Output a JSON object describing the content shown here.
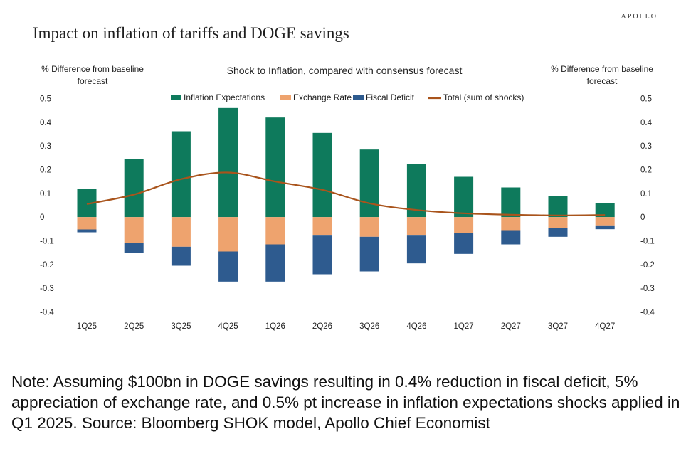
{
  "header": {
    "brand": "APOLLO",
    "title": "Impact on inflation of tariffs and DOGE savings"
  },
  "note": "Note: Assuming $100bn in DOGE savings resulting in 0.4% reduction in fiscal deficit, 5% appreciation of exchange rate, and 0.5% pt increase in inflation expectations shocks applied in Q1 2025. Source: Bloomberg SHOK model, Apollo Chief Economist",
  "colors": {
    "inflation_expectations": "#0e7a5c",
    "exchange_rate": "#eea36e",
    "fiscal_deficit": "#2e5b8f",
    "total": "#a9541c"
  },
  "chart_data": {
    "type": "bar",
    "stacked": true,
    "title": "Shock to Inflation, compared with consensus forecast",
    "ylabel_left": [
      "% Difference from baseline",
      "forecast"
    ],
    "ylabel_right": [
      "% Difference from baseline",
      "forecast"
    ],
    "ylim": [
      -0.4,
      0.5
    ],
    "yticks": [
      0.5,
      0.4,
      0.3,
      0.2,
      0.1,
      0,
      -0.1,
      -0.2,
      -0.3,
      -0.4
    ],
    "ytick_labels": [
      "0.5",
      "0.4",
      "0.3",
      "0.2",
      "0.1",
      "0",
      "-0.1",
      "-0.2",
      "-0.3",
      "-0.4"
    ],
    "categories": [
      "1Q25",
      "2Q25",
      "3Q25",
      "4Q25",
      "1Q26",
      "2Q26",
      "3Q26",
      "4Q26",
      "1Q27",
      "2Q27",
      "3Q27",
      "4Q27"
    ],
    "series": [
      {
        "name": "Inflation Expectations",
        "kind": "bar",
        "color": "#0e7a5c",
        "values": [
          0.12,
          0.245,
          0.362,
          0.46,
          0.42,
          0.355,
          0.285,
          0.223,
          0.17,
          0.125,
          0.09,
          0.06
        ]
      },
      {
        "name": "Exchange Rate",
        "kind": "bar",
        "color": "#eea36e",
        "values": [
          -0.052,
          -0.11,
          -0.125,
          -0.145,
          -0.115,
          -0.078,
          -0.083,
          -0.078,
          -0.068,
          -0.058,
          -0.047,
          -0.035
        ]
      },
      {
        "name": "Fiscal Deficit",
        "kind": "bar",
        "color": "#2e5b8f",
        "values": [
          -0.012,
          -0.04,
          -0.08,
          -0.127,
          -0.157,
          -0.163,
          -0.146,
          -0.117,
          -0.087,
          -0.057,
          -0.036,
          -0.016
        ]
      },
      {
        "name": "Total (sum of shocks)",
        "kind": "line",
        "color": "#a9541c",
        "values": [
          0.055,
          0.095,
          0.16,
          0.188,
          0.15,
          0.115,
          0.058,
          0.03,
          0.016,
          0.01,
          0.007,
          0.009
        ]
      }
    ],
    "legend_position": "top"
  }
}
